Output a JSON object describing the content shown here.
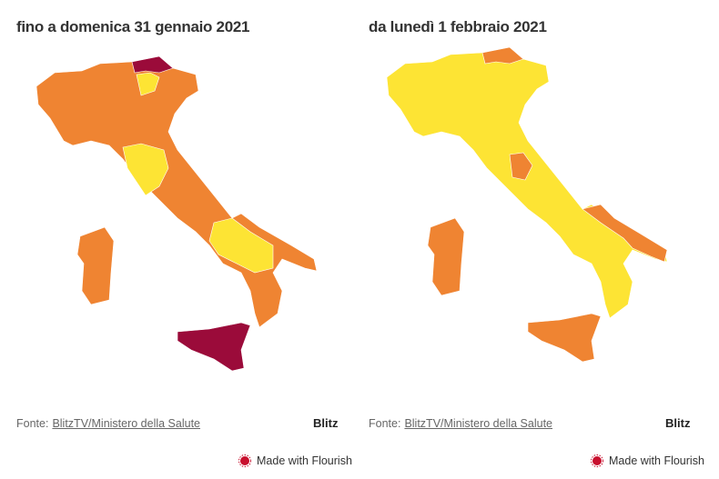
{
  "panels": [
    {
      "title": "fino a domenica 31 gennaio 2021",
      "source_label": "Fonte:",
      "source_link": "BlitzTV/Ministero della Salute",
      "logo": "Blitz",
      "credit": "Made with Flourish"
    },
    {
      "title": "da lunedì 1 febbraio 2021",
      "source_label": "Fonte:",
      "source_link": "BlitzTV/Ministero della Salute",
      "logo": "Blitz",
      "credit": "Made with Flourish"
    }
  ]
}
